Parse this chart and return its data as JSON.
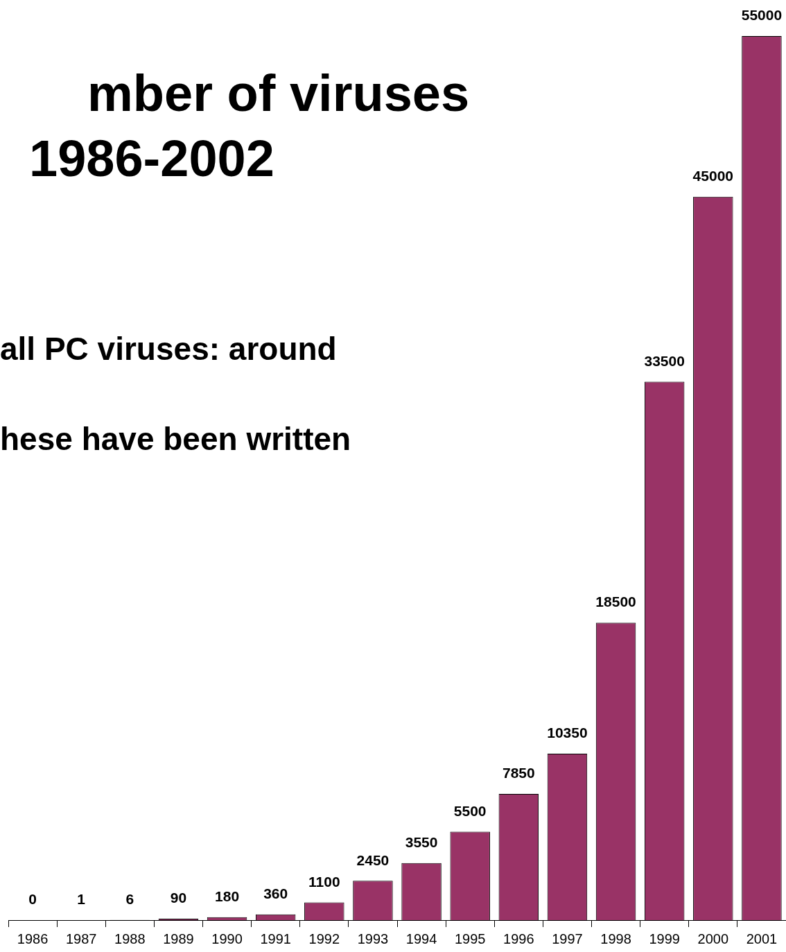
{
  "chart_data": {
    "type": "bar",
    "title": "mber of viruses",
    "subtitle": "1986-2002",
    "annotations": [
      "all PC viruses: around",
      "hese have been written"
    ],
    "categories": [
      "1986",
      "1987",
      "1988",
      "1989",
      "1990",
      "1991",
      "1992",
      "1993",
      "1994",
      "1995",
      "1996",
      "1997",
      "1998",
      "1999",
      "2000",
      "2001"
    ],
    "values": [
      0,
      1,
      6,
      90,
      180,
      360,
      1100,
      2450,
      3550,
      5500,
      7850,
      10350,
      18500,
      33500,
      45000,
      55000
    ],
    "color": "#993366",
    "data_labels": true,
    "legend": false,
    "grid": false,
    "tick_labels": "x"
  }
}
